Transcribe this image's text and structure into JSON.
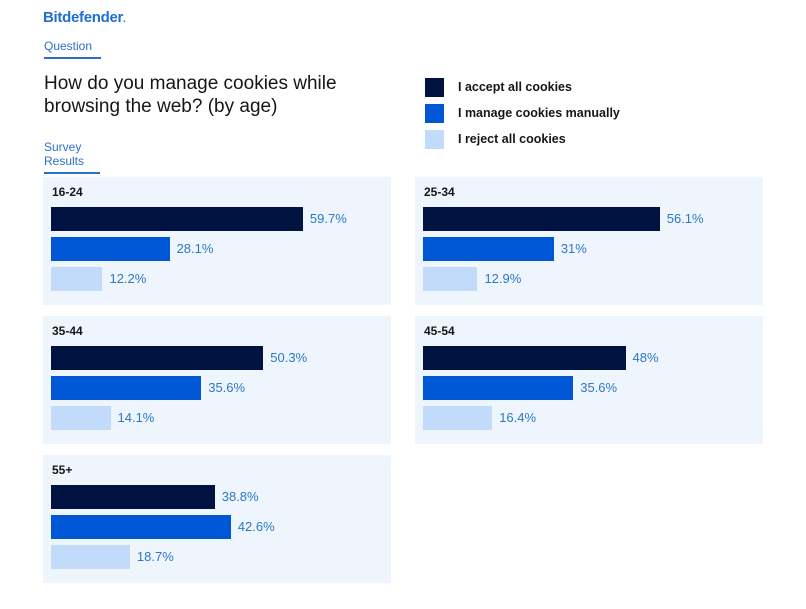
{
  "header": {
    "logo": "Bitdefender",
    "question_tab": "Question",
    "title": "How do you manage cookies while browsing the web? (by age)",
    "results_tab": "Survey Results"
  },
  "colors": {
    "accept": "#00123f",
    "manual": "#0057d6",
    "reject": "#c3dbfa",
    "panel_bg": "#eef5fc",
    "value_text": "#2c78c8",
    "brand": "#1f6fd1"
  },
  "chart_data": {
    "type": "bar",
    "orientation": "horizontal",
    "title": "How do you manage cookies while browsing the web? (by age)",
    "legend_position": "top-right",
    "legend": [
      "I accept all cookies",
      "I manage cookies manually",
      "I reject all cookies"
    ],
    "unit": "%",
    "xlim": [
      0,
      100
    ],
    "grid": false,
    "groups": [
      {
        "name": "16-24",
        "values": [
          59.7,
          28.1,
          12.2
        ],
        "labels": [
          "59.7%",
          "28.1%",
          "12.2%"
        ]
      },
      {
        "name": "25-34",
        "values": [
          56.1,
          31,
          12.9
        ],
        "labels": [
          "56.1%",
          "31%",
          "12.9%"
        ]
      },
      {
        "name": "35-44",
        "values": [
          50.3,
          35.6,
          14.1
        ],
        "labels": [
          "50.3%",
          "35.6%",
          "14.1%"
        ]
      },
      {
        "name": "45-54",
        "values": [
          48,
          35.6,
          16.4
        ],
        "labels": [
          "48%",
          "35.6%",
          "16.4%"
        ]
      },
      {
        "name": "55+",
        "values": [
          38.8,
          42.6,
          18.7
        ],
        "labels": [
          "38.8%",
          "42.6%",
          "18.7%"
        ]
      }
    ]
  }
}
